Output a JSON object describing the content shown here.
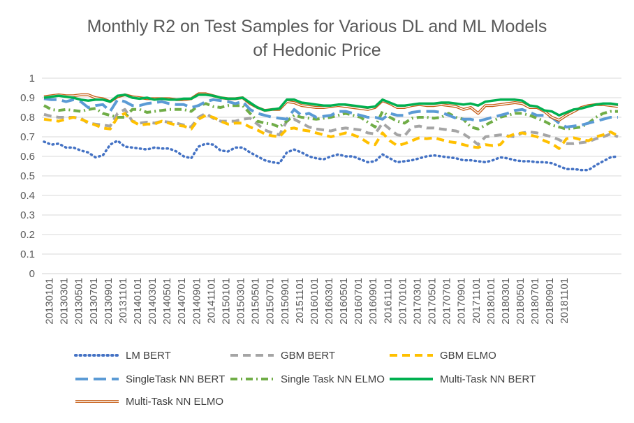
{
  "chart_data": {
    "type": "line",
    "title_lines": [
      "Monthly  R2 on Test Samples for Various DL and ML Models",
      "of Hedonic Price"
    ],
    "xlabel": "",
    "ylabel": "",
    "ylim": [
      0,
      1
    ],
    "yticks": [
      "0",
      "0.1",
      "0.2",
      "0.3",
      "0.4",
      "0.5",
      "0.6",
      "0.7",
      "0.8",
      "0.9",
      "1"
    ],
    "grid": true,
    "legend_position": "bottom",
    "x_tick_labels": [
      "20130101",
      "20130301",
      "20130501",
      "20130701",
      "20130901",
      "20131101",
      "20140101",
      "20140301",
      "20140501",
      "20140701",
      "20140901",
      "20141101",
      "20150101",
      "20150301",
      "20150501",
      "20150701",
      "20150901",
      "20151101",
      "20160101",
      "20160301",
      "20160501",
      "20160701",
      "20160901",
      "20161101",
      "20170101",
      "20170301",
      "20170501",
      "20170701",
      "20170901",
      "20171101",
      "20180101",
      "20180301",
      "20180501",
      "20180701",
      "20180901",
      "20181101"
    ],
    "series": [
      {
        "name": "LM BERT",
        "color": "#4472c4",
        "style": "dotted",
        "values": [
          0.675,
          0.66,
          0.665,
          0.645,
          0.645,
          0.63,
          0.62,
          0.595,
          0.605,
          0.66,
          0.68,
          0.65,
          0.645,
          0.64,
          0.635,
          0.645,
          0.64,
          0.64,
          0.625,
          0.6,
          0.59,
          0.65,
          0.665,
          0.66,
          0.63,
          0.625,
          0.645,
          0.645,
          0.62,
          0.6,
          0.58,
          0.57,
          0.565,
          0.62,
          0.635,
          0.62,
          0.6,
          0.59,
          0.585,
          0.6,
          0.61,
          0.6,
          0.6,
          0.585,
          0.57,
          0.575,
          0.61,
          0.59,
          0.57,
          0.575,
          0.58,
          0.59,
          0.6,
          0.605,
          0.6,
          0.595,
          0.59,
          0.58,
          0.58,
          0.575,
          0.57,
          0.58,
          0.595,
          0.59,
          0.58,
          0.575,
          0.575,
          0.57,
          0.57,
          0.565,
          0.55,
          0.535,
          0.535,
          0.53,
          0.53,
          0.555,
          0.575,
          0.595,
          0.6
        ]
      },
      {
        "name": "GBM BERT",
        "color": "#a5a5a5",
        "style": "dashed",
        "values": [
          0.815,
          0.805,
          0.8,
          0.8,
          0.8,
          0.795,
          0.77,
          0.765,
          0.76,
          0.755,
          0.82,
          0.84,
          0.78,
          0.77,
          0.775,
          0.77,
          0.78,
          0.775,
          0.77,
          0.76,
          0.75,
          0.8,
          0.82,
          0.795,
          0.78,
          0.78,
          0.78,
          0.79,
          0.795,
          0.765,
          0.735,
          0.72,
          0.71,
          0.78,
          0.79,
          0.77,
          0.75,
          0.74,
          0.735,
          0.73,
          0.74,
          0.745,
          0.74,
          0.735,
          0.72,
          0.715,
          0.77,
          0.74,
          0.71,
          0.705,
          0.75,
          0.755,
          0.745,
          0.745,
          0.74,
          0.735,
          0.73,
          0.715,
          0.69,
          0.66,
          0.7,
          0.705,
          0.71,
          0.705,
          0.7,
          0.72,
          0.725,
          0.72,
          0.71,
          0.7,
          0.685,
          0.665,
          0.665,
          0.67,
          0.675,
          0.69,
          0.7,
          0.715,
          0.7
        ]
      },
      {
        "name": "GBM ELMO",
        "color": "#ffc000",
        "style": "dashed",
        "values": [
          0.79,
          0.785,
          0.78,
          0.79,
          0.8,
          0.79,
          0.775,
          0.76,
          0.745,
          0.74,
          0.8,
          0.82,
          0.78,
          0.76,
          0.765,
          0.765,
          0.78,
          0.77,
          0.76,
          0.755,
          0.74,
          0.79,
          0.81,
          0.8,
          0.78,
          0.765,
          0.77,
          0.77,
          0.75,
          0.735,
          0.715,
          0.705,
          0.7,
          0.74,
          0.745,
          0.735,
          0.73,
          0.72,
          0.71,
          0.7,
          0.71,
          0.72,
          0.71,
          0.695,
          0.67,
          0.66,
          0.72,
          0.68,
          0.655,
          0.665,
          0.68,
          0.695,
          0.69,
          0.695,
          0.685,
          0.675,
          0.67,
          0.66,
          0.65,
          0.645,
          0.66,
          0.655,
          0.66,
          0.7,
          0.715,
          0.72,
          0.71,
          0.7,
          0.68,
          0.665,
          0.64,
          0.69,
          0.695,
          0.685,
          0.68,
          0.7,
          0.71,
          0.725,
          0.705
        ]
      },
      {
        "name": "SingleTask NN BERT",
        "color": "#5b9bd5",
        "style": "longdash",
        "values": [
          0.895,
          0.89,
          0.89,
          0.88,
          0.89,
          0.88,
          0.85,
          0.86,
          0.865,
          0.83,
          0.89,
          0.88,
          0.86,
          0.86,
          0.87,
          0.875,
          0.88,
          0.87,
          0.865,
          0.865,
          0.85,
          0.86,
          0.88,
          0.89,
          0.885,
          0.88,
          0.87,
          0.88,
          0.84,
          0.82,
          0.81,
          0.8,
          0.795,
          0.79,
          0.84,
          0.81,
          0.82,
          0.8,
          0.805,
          0.81,
          0.83,
          0.83,
          0.82,
          0.81,
          0.8,
          0.8,
          0.79,
          0.82,
          0.81,
          0.81,
          0.825,
          0.83,
          0.83,
          0.83,
          0.825,
          0.81,
          0.795,
          0.79,
          0.79,
          0.78,
          0.79,
          0.8,
          0.81,
          0.82,
          0.835,
          0.84,
          0.825,
          0.81,
          0.81,
          0.8,
          0.77,
          0.75,
          0.755,
          0.76,
          0.77,
          0.78,
          0.79,
          0.8,
          0.8
        ]
      },
      {
        "name": "Single Task NN ELMO",
        "color": "#70ad47",
        "style": "dashdot",
        "values": [
          0.86,
          0.84,
          0.835,
          0.84,
          0.835,
          0.83,
          0.84,
          0.845,
          0.82,
          0.81,
          0.8,
          0.8,
          0.84,
          0.84,
          0.825,
          0.83,
          0.835,
          0.84,
          0.84,
          0.84,
          0.83,
          0.86,
          0.87,
          0.855,
          0.85,
          0.86,
          0.86,
          0.86,
          0.82,
          0.78,
          0.77,
          0.765,
          0.75,
          0.78,
          0.81,
          0.8,
          0.795,
          0.79,
          0.795,
          0.8,
          0.81,
          0.82,
          0.81,
          0.8,
          0.775,
          0.75,
          0.83,
          0.8,
          0.78,
          0.77,
          0.795,
          0.8,
          0.8,
          0.795,
          0.8,
          0.82,
          0.8,
          0.79,
          0.75,
          0.74,
          0.76,
          0.78,
          0.8,
          0.81,
          0.82,
          0.82,
          0.81,
          0.795,
          0.78,
          0.76,
          0.75,
          0.74,
          0.745,
          0.75,
          0.77,
          0.8,
          0.82,
          0.83,
          0.83
        ]
      },
      {
        "name": "Multi-Task NN BERT",
        "color": "#00b050",
        "style": "solid",
        "values": [
          0.9,
          0.905,
          0.91,
          0.905,
          0.9,
          0.89,
          0.885,
          0.89,
          0.89,
          0.88,
          0.91,
          0.915,
          0.9,
          0.895,
          0.9,
          0.89,
          0.895,
          0.89,
          0.89,
          0.895,
          0.895,
          0.915,
          0.915,
          0.91,
          0.9,
          0.895,
          0.895,
          0.9,
          0.875,
          0.85,
          0.835,
          0.84,
          0.845,
          0.89,
          0.89,
          0.875,
          0.87,
          0.865,
          0.86,
          0.86,
          0.865,
          0.865,
          0.86,
          0.855,
          0.85,
          0.855,
          0.89,
          0.875,
          0.86,
          0.86,
          0.865,
          0.87,
          0.87,
          0.87,
          0.875,
          0.875,
          0.87,
          0.865,
          0.87,
          0.86,
          0.88,
          0.885,
          0.89,
          0.89,
          0.89,
          0.885,
          0.86,
          0.855,
          0.835,
          0.83,
          0.81,
          0.825,
          0.84,
          0.845,
          0.855,
          0.865,
          0.87,
          0.87,
          0.865
        ]
      },
      {
        "name": "Multi-Task NN ELMO",
        "color": "#c55a11",
        "style": "double",
        "values": [
          0.905,
          0.91,
          0.915,
          0.91,
          0.91,
          0.915,
          0.915,
          0.9,
          0.895,
          0.88,
          0.905,
          0.915,
          0.905,
          0.9,
          0.895,
          0.895,
          0.895,
          0.895,
          0.89,
          0.89,
          0.895,
          0.92,
          0.92,
          0.91,
          0.9,
          0.895,
          0.895,
          0.9,
          0.87,
          0.85,
          0.835,
          0.84,
          0.84,
          0.88,
          0.875,
          0.86,
          0.855,
          0.85,
          0.85,
          0.855,
          0.86,
          0.855,
          0.85,
          0.845,
          0.84,
          0.85,
          0.885,
          0.87,
          0.85,
          0.85,
          0.86,
          0.865,
          0.86,
          0.86,
          0.865,
          0.86,
          0.855,
          0.84,
          0.85,
          0.82,
          0.86,
          0.86,
          0.865,
          0.87,
          0.875,
          0.87,
          0.85,
          0.85,
          0.83,
          0.8,
          0.785,
          0.81,
          0.83,
          0.85,
          0.86,
          0.865,
          0.865,
          0.86,
          0.855
        ]
      }
    ]
  }
}
